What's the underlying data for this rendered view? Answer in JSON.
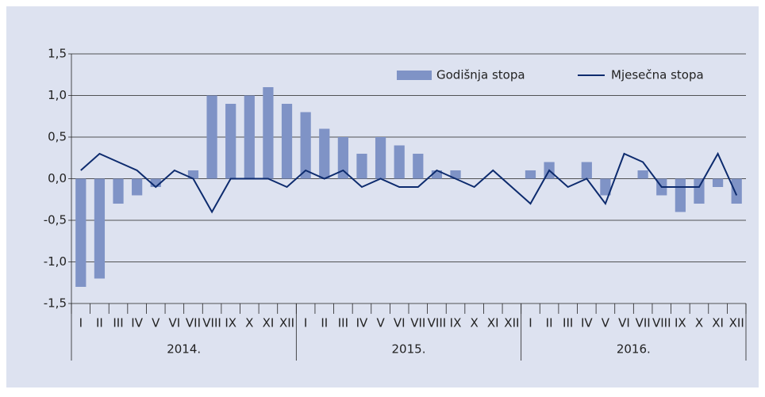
{
  "chart_data": {
    "type": "bar-line",
    "categories": [
      "I",
      "II",
      "III",
      "IV",
      "V",
      "VI",
      "VII",
      "VIII",
      "IX",
      "X",
      "XI",
      "XII",
      "I",
      "II",
      "III",
      "IV",
      "V",
      "VI",
      "VII",
      "VIII",
      "IX",
      "X",
      "XI",
      "XII",
      "I",
      "II",
      "III",
      "IV",
      "V",
      "VI",
      "VII",
      "VIII",
      "IX",
      "X",
      "XI",
      "XII"
    ],
    "groups": [
      "2014.",
      "2015.",
      "2016."
    ],
    "series": [
      {
        "name": "Godišnja stopa",
        "type": "bar",
        "color": "#7f93c6",
        "values": [
          -1.3,
          -1.2,
          -0.3,
          -0.2,
          -0.1,
          0.0,
          0.1,
          1.0,
          0.9,
          1.0,
          1.1,
          0.9,
          0.8,
          0.6,
          0.5,
          0.3,
          0.5,
          0.4,
          0.3,
          0.1,
          0.1,
          0.0,
          0.0,
          0.0,
          0.1,
          0.2,
          0.0,
          0.2,
          -0.2,
          0.0,
          0.1,
          -0.2,
          -0.4,
          -0.3,
          -0.1,
          -0.3
        ]
      },
      {
        "name": "Mjesečna stopa",
        "type": "line",
        "color": "#0d2b6e",
        "values": [
          0.1,
          0.3,
          0.2,
          0.1,
          -0.1,
          0.1,
          0.0,
          -0.4,
          0.0,
          0.0,
          0.0,
          -0.1,
          0.1,
          0.0,
          0.1,
          -0.1,
          0.0,
          -0.1,
          -0.1,
          0.1,
          0.0,
          -0.1,
          0.1,
          -0.1,
          -0.3,
          0.1,
          -0.1,
          0.0,
          -0.3,
          0.3,
          0.2,
          -0.1,
          -0.1,
          -0.1,
          0.3,
          -0.2
        ]
      }
    ],
    "ylim": [
      -1.5,
      1.5
    ],
    "yticks": [
      {
        "value": 1.5,
        "label": "1,5"
      },
      {
        "value": 1.0,
        "label": "1,0"
      },
      {
        "value": 0.5,
        "label": "0,5"
      },
      {
        "value": 0.0,
        "label": "0,0"
      },
      {
        "value": -0.5,
        "label": "-0,5"
      },
      {
        "value": -1.0,
        "label": "-1,0"
      },
      {
        "value": -1.5,
        "label": "-1,5"
      }
    ],
    "grid": true,
    "legend": "top-right"
  }
}
